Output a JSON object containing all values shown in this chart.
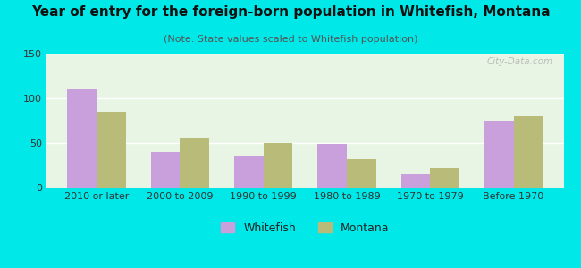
{
  "title": "Year of entry for the foreign-born population in Whitefish, Montana",
  "subtitle": "(Note: State values scaled to Whitefish population)",
  "categories": [
    "2010 or later",
    "2000 to 2009",
    "1990 to 1999",
    "1980 to 1989",
    "1970 to 1979",
    "Before 1970"
  ],
  "whitefish_values": [
    110,
    40,
    35,
    49,
    15,
    75
  ],
  "montana_values": [
    85,
    55,
    50,
    32,
    22,
    80
  ],
  "whitefish_color": "#c9a0dc",
  "montana_color": "#b8bc78",
  "background_outer": "#00e8e8",
  "background_inner": "#e8f5e4",
  "ylim": [
    0,
    150
  ],
  "yticks": [
    0,
    50,
    100,
    150
  ],
  "bar_width": 0.35,
  "legend_labels": [
    "Whitefish",
    "Montana"
  ],
  "watermark": "City-Data.com",
  "title_fontsize": 11,
  "subtitle_fontsize": 8,
  "tick_fontsize": 8,
  "legend_fontsize": 9
}
